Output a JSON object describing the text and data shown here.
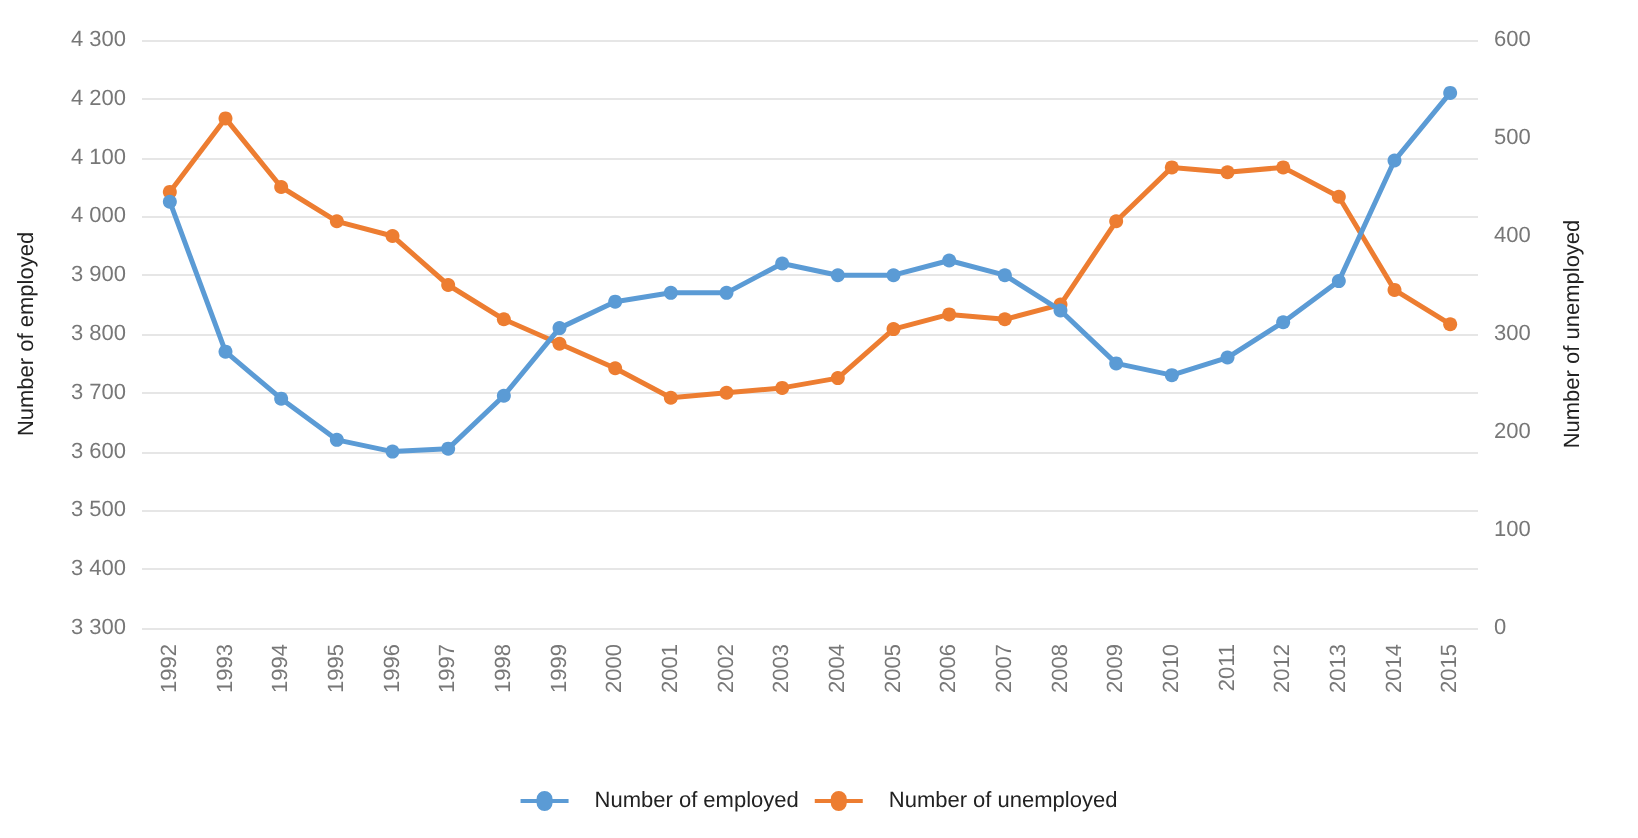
{
  "chart_data": {
    "type": "line",
    "ylabel": "Number of employed",
    "y2label": "Number of unemployed",
    "categories": [
      "1992",
      "1993",
      "1994",
      "1995",
      "1996",
      "1997",
      "1998",
      "1999",
      "2000",
      "2001",
      "2002",
      "2003",
      "2004",
      "2005",
      "2006",
      "2007",
      "2008",
      "2009",
      "2010",
      "2011",
      "2012",
      "2013",
      "2014",
      "2015"
    ],
    "series": [
      {
        "name": "Number of employed",
        "color": "#5b9bd5",
        "values": [
          4025,
          3770,
          3690,
          3620,
          3600,
          3605,
          3695,
          3810,
          3855,
          3870,
          3870,
          3920,
          3900,
          3900,
          3925,
          3900,
          3840,
          3750,
          3730,
          3760,
          3820,
          3890,
          4095,
          4210
        ]
      },
      {
        "name": "Number of unemployed",
        "color": "#ed7d31",
        "axis": "y2",
        "values": [
          445,
          520,
          450,
          415,
          400,
          350,
          315,
          290,
          265,
          235,
          240,
          245,
          255,
          305,
          320,
          315,
          330,
          415,
          470,
          465,
          470,
          440,
          345,
          310
        ]
      }
    ],
    "ylim": [
      3300,
      4300
    ],
    "yticks": [
      {
        "value": 3300,
        "label": "3 300"
      },
      {
        "value": 3400,
        "label": "3 400"
      },
      {
        "value": 3500,
        "label": "3 500"
      },
      {
        "value": 3600,
        "label": "3 600"
      },
      {
        "value": 3700,
        "label": "3 700"
      },
      {
        "value": 3800,
        "label": "3 800"
      },
      {
        "value": 3900,
        "label": "3 900"
      },
      {
        "value": 4000,
        "label": "4 000"
      },
      {
        "value": 4100,
        "label": "4 100"
      },
      {
        "value": 4200,
        "label": "4 200"
      },
      {
        "value": 4300,
        "label": "4 300"
      }
    ],
    "y2lim": [
      0,
      600
    ],
    "y2ticks": [
      0,
      100,
      200,
      300,
      400,
      500,
      600
    ],
    "grid": "y",
    "legend": "bottom",
    "marker": "circle",
    "line_style": "solid"
  }
}
